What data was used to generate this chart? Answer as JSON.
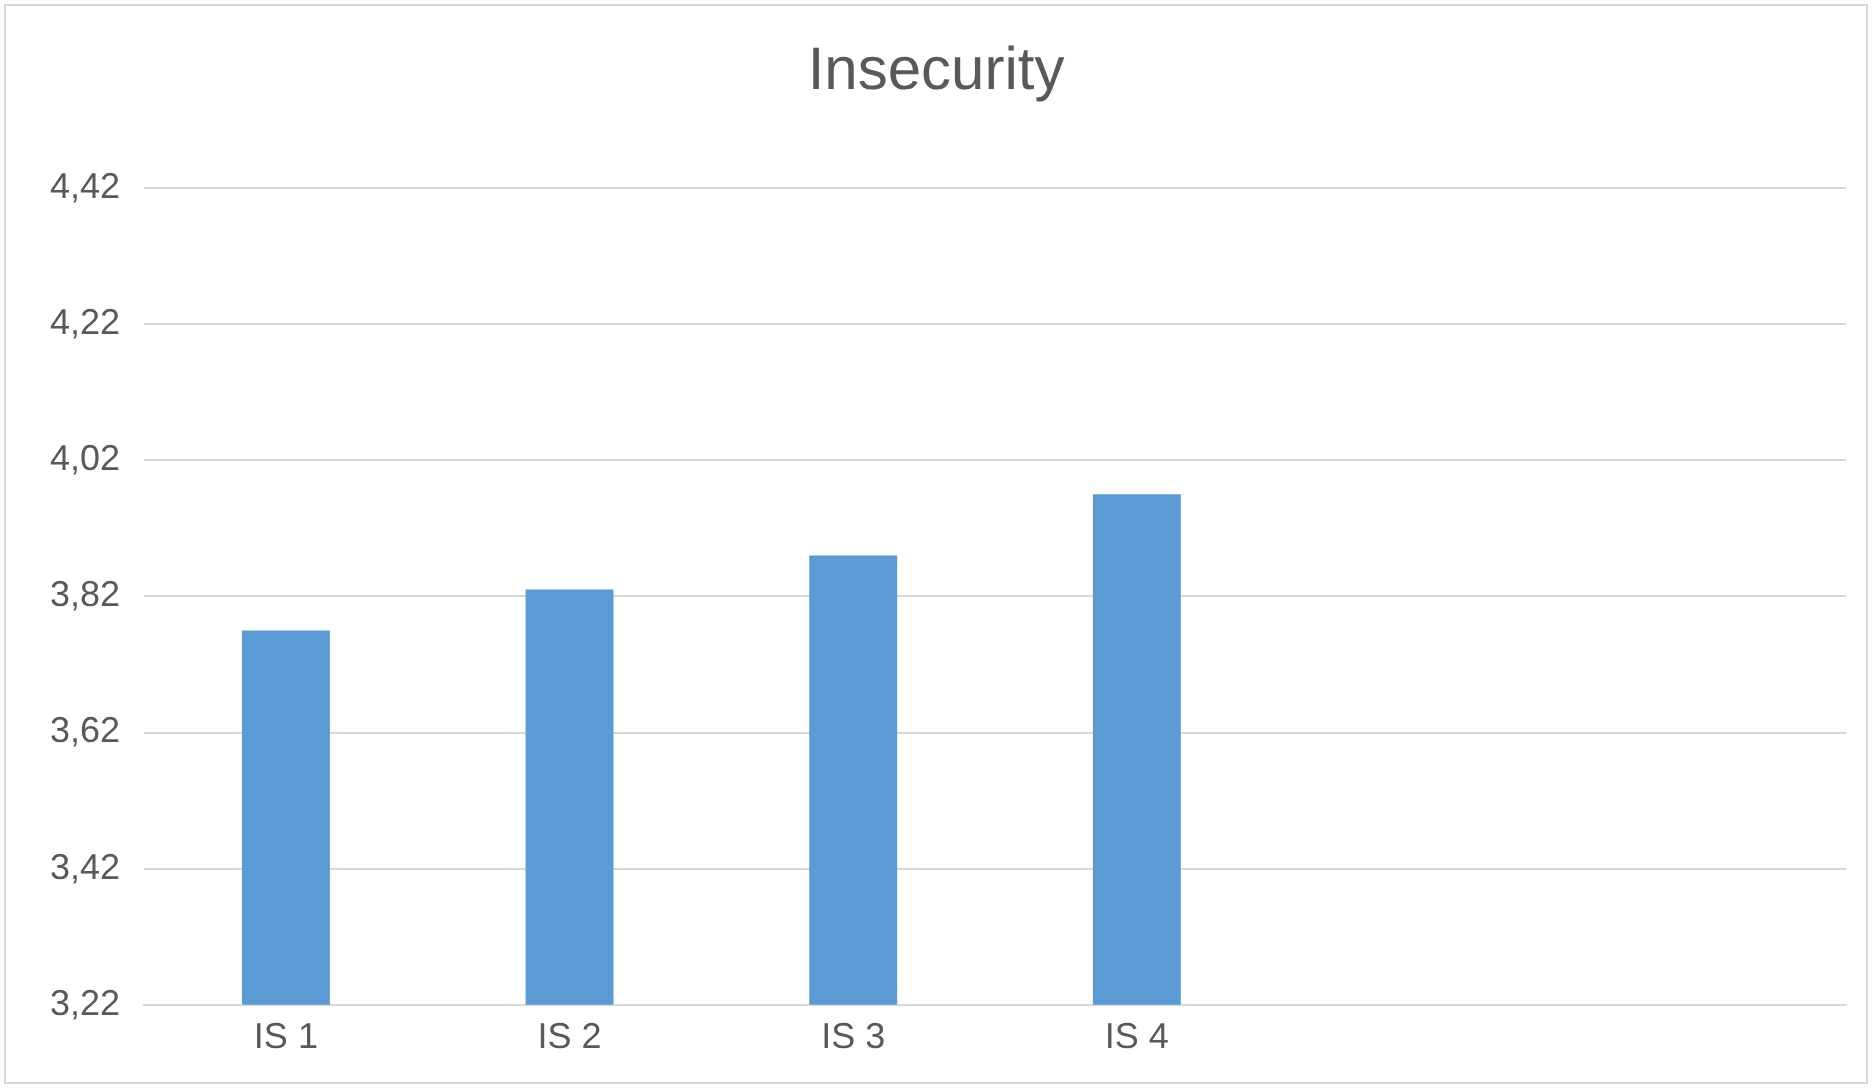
{
  "chart_data": {
    "type": "bar",
    "title": "Insecurity",
    "categories": [
      "IS 1",
      "IS 2",
      "IS 3",
      "IS 4",
      null,
      null
    ],
    "values": [
      3.77,
      3.83,
      3.88,
      3.97,
      null,
      null
    ],
    "color": "#5b9bd5",
    "ylim": [
      3.22,
      4.42
    ],
    "yticks": [
      {
        "value": 3.22,
        "label": "3,22"
      },
      {
        "value": 3.42,
        "label": "3,42"
      },
      {
        "value": 3.62,
        "label": "3,62"
      },
      {
        "value": 3.82,
        "label": "3,82"
      },
      {
        "value": 4.02,
        "label": "4,02"
      },
      {
        "value": 4.22,
        "label": "4,22"
      },
      {
        "value": 4.42,
        "label": "4,42"
      }
    ],
    "grid": "y",
    "legend": false
  }
}
